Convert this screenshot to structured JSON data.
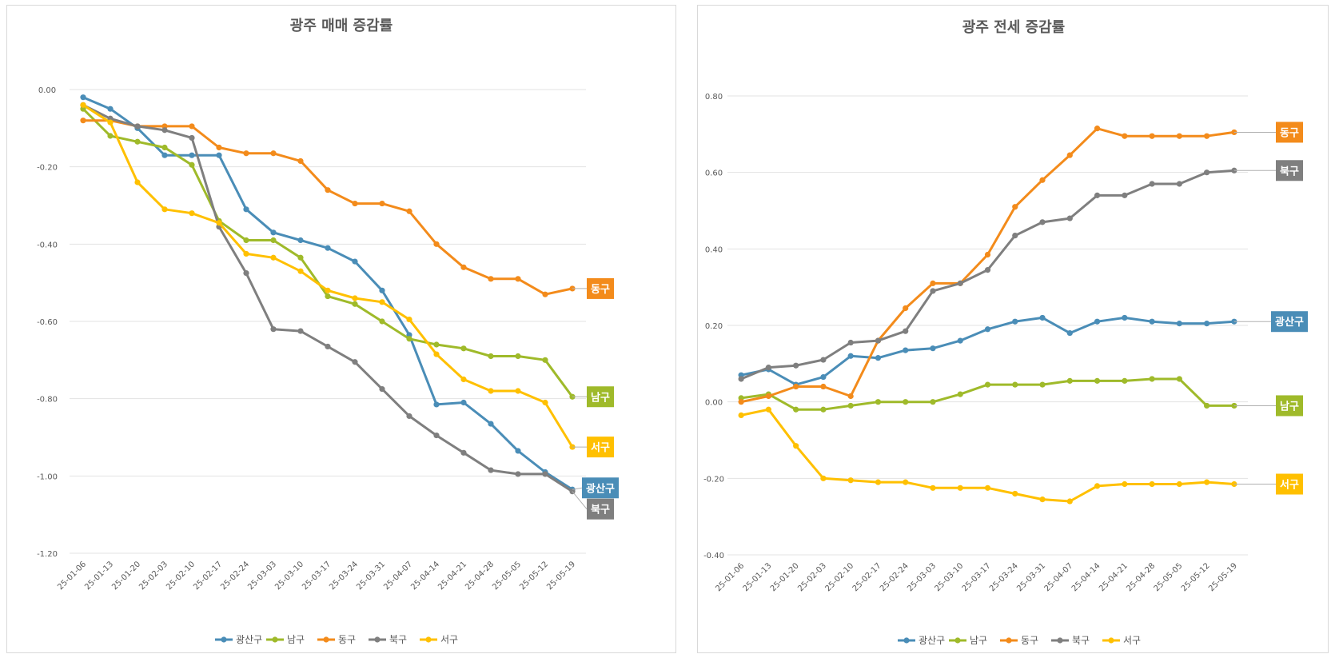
{
  "chart_data": [
    {
      "type": "line",
      "title": "광주 매매 증감률",
      "categories": [
        "25-01-06",
        "25-01-13",
        "25-01-20",
        "25-02-03",
        "25-02-10",
        "25-02-17",
        "25-02-24",
        "25-03-03",
        "25-03-10",
        "25-03-17",
        "25-03-24",
        "25-03-31",
        "25-04-07",
        "25-04-14",
        "25-04-21",
        "25-04-28",
        "25-05-05",
        "25-05-12",
        "25-05-19"
      ],
      "ylim": [
        -1.2,
        0.0
      ],
      "yticks": [
        0.0,
        -0.2,
        -0.4,
        -0.6,
        -0.8,
        -1.0,
        -1.2
      ],
      "ytick_labels": [
        "0.00",
        "-0.20",
        "-0.40",
        "-0.60",
        "-0.80",
        "-1.00",
        "-1.20"
      ],
      "grid": true,
      "legend": "bottom",
      "series": [
        {
          "name": "광산구",
          "color": "#4a8db7",
          "values": [
            -0.02,
            -0.05,
            -0.1,
            -0.17,
            -0.17,
            -0.17,
            -0.31,
            -0.37,
            -0.39,
            -0.41,
            -0.445,
            -0.52,
            -0.635,
            -0.815,
            -0.81,
            -0.865,
            -0.935,
            -0.99,
            -1.035
          ]
        },
        {
          "name": "남구",
          "color": "#9fba2a",
          "values": [
            -0.05,
            -0.12,
            -0.135,
            -0.15,
            -0.195,
            -0.34,
            -0.39,
            -0.39,
            -0.435,
            -0.535,
            -0.555,
            -0.6,
            -0.645,
            -0.66,
            -0.67,
            -0.69,
            -0.69,
            -0.7,
            -0.795
          ]
        },
        {
          "name": "동구",
          "color": "#f38b1b",
          "values": [
            -0.08,
            -0.08,
            -0.095,
            -0.095,
            -0.095,
            -0.15,
            -0.165,
            -0.165,
            -0.185,
            -0.26,
            -0.295,
            -0.295,
            -0.315,
            -0.4,
            -0.46,
            -0.49,
            -0.49,
            -0.53,
            -0.515
          ]
        },
        {
          "name": "북구",
          "color": "#7f7f7f",
          "values": [
            -0.04,
            -0.075,
            -0.095,
            -0.105,
            -0.125,
            -0.355,
            -0.475,
            -0.62,
            -0.625,
            -0.665,
            -0.705,
            -0.775,
            -0.845,
            -0.895,
            -0.94,
            -0.985,
            -0.995,
            -0.995,
            -1.04
          ]
        },
        {
          "name": "서구",
          "color": "#ffc000",
          "values": [
            -0.04,
            -0.085,
            -0.24,
            -0.31,
            -0.32,
            -0.345,
            -0.425,
            -0.435,
            -0.47,
            -0.52,
            -0.54,
            -0.55,
            -0.595,
            -0.685,
            -0.75,
            -0.78,
            -0.78,
            -0.81,
            -0.925
          ]
        }
      ],
      "end_labels": [
        {
          "series": "동구",
          "text": "동구",
          "color": "#f38b1b"
        },
        {
          "series": "남구",
          "text": "남구",
          "color": "#9fba2a"
        },
        {
          "series": "서구",
          "text": "서구",
          "color": "#ffc000"
        },
        {
          "series": "광산구",
          "text": "광산구",
          "color": "#4a8db7"
        },
        {
          "series": "북구",
          "text": "북구",
          "color": "#7f7f7f"
        }
      ]
    },
    {
      "type": "line",
      "title": "광주 전세 증감률",
      "categories": [
        "25-01-06",
        "25-01-13",
        "25-01-20",
        "25-02-03",
        "25-02-10",
        "25-02-17",
        "25-02-24",
        "25-03-03",
        "25-03-10",
        "25-03-17",
        "25-03-24",
        "25-03-31",
        "25-04-07",
        "25-04-14",
        "25-04-21",
        "25-04-28",
        "25-05-05",
        "25-05-12",
        "25-05-19"
      ],
      "ylim": [
        -0.4,
        0.8
      ],
      "yticks": [
        0.8,
        0.6,
        0.4,
        0.2,
        0.0,
        -0.2,
        -0.4
      ],
      "ytick_labels": [
        "0.80",
        "0.60",
        "0.40",
        "0.20",
        "0.00",
        "-0.20",
        "-0.40"
      ],
      "grid": true,
      "legend": "bottom",
      "series": [
        {
          "name": "광산구",
          "color": "#4a8db7",
          "values": [
            0.07,
            0.085,
            0.045,
            0.065,
            0.12,
            0.115,
            0.135,
            0.14,
            0.16,
            0.19,
            0.21,
            0.22,
            0.18,
            0.21,
            0.22,
            0.21,
            0.205,
            0.205,
            0.21
          ]
        },
        {
          "name": "남구",
          "color": "#9fba2a",
          "values": [
            0.01,
            0.02,
            -0.02,
            -0.02,
            -0.01,
            0.0,
            0.0,
            0.0,
            0.02,
            0.045,
            0.045,
            0.045,
            0.055,
            0.055,
            0.055,
            0.06,
            0.06,
            -0.01,
            -0.01
          ]
        },
        {
          "name": "동구",
          "color": "#f38b1b",
          "values": [
            0.0,
            0.015,
            0.04,
            0.04,
            0.015,
            0.16,
            0.245,
            0.31,
            0.31,
            0.385,
            0.51,
            0.58,
            0.645,
            0.715,
            0.695,
            0.695,
            0.695,
            0.695,
            0.705
          ]
        },
        {
          "name": "북구",
          "color": "#7f7f7f",
          "values": [
            0.06,
            0.09,
            0.095,
            0.11,
            0.155,
            0.16,
            0.185,
            0.29,
            0.31,
            0.345,
            0.435,
            0.47,
            0.48,
            0.54,
            0.54,
            0.57,
            0.57,
            0.6,
            0.605
          ]
        },
        {
          "name": "서구",
          "color": "#ffc000",
          "values": [
            -0.035,
            -0.02,
            -0.115,
            -0.2,
            -0.205,
            -0.21,
            -0.21,
            -0.225,
            -0.225,
            -0.225,
            -0.24,
            -0.255,
            -0.26,
            -0.22,
            -0.215,
            -0.215,
            -0.215,
            -0.21,
            -0.215
          ]
        }
      ],
      "end_labels": [
        {
          "series": "동구",
          "text": "동구",
          "color": "#f38b1b"
        },
        {
          "series": "북구",
          "text": "북구",
          "color": "#7f7f7f"
        },
        {
          "series": "광산구",
          "text": "광산구",
          "color": "#4a8db7"
        },
        {
          "series": "남구",
          "text": "남구",
          "color": "#9fba2a"
        },
        {
          "series": "서구",
          "text": "서구",
          "color": "#ffc000"
        }
      ]
    }
  ]
}
